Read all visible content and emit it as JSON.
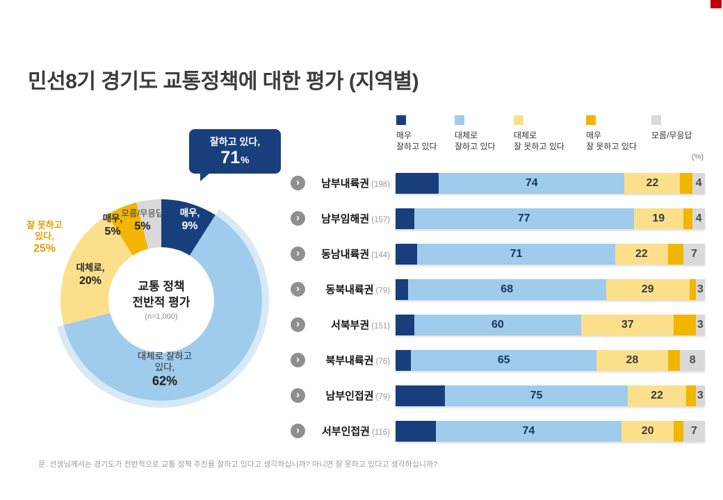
{
  "page": {
    "title": "민선8기 경기도 교통정책에 대한 평가 (지역별)",
    "unit_label": "(%)",
    "footnote": "문. 선생님께서는 경기도가 전반적으로 교통 정책 추진을 잘하고 있다고 생각하십니까? 아니면 잘 못하고 있다고 생각하십니까?"
  },
  "colors": {
    "very_good": "#183f7c",
    "good": "#9fcbec",
    "good_halo": "#d7e9f6",
    "bad": "#fbdf8b",
    "very_bad": "#f2b500",
    "dk": "#d9d9d9",
    "accent_red": "#c00000",
    "negative_text": "#e39b00"
  },
  "legend": {
    "items": [
      {
        "key": "very_good",
        "lines": [
          "매우",
          "잘하고 있다"
        ]
      },
      {
        "key": "good",
        "lines": [
          "대체로",
          "잘하고 있다"
        ]
      },
      {
        "key": "bad",
        "lines": [
          "대체로",
          "잘 못하고 있다"
        ]
      },
      {
        "key": "very_bad",
        "lines": [
          "매우",
          "잘 못하고 있다"
        ]
      },
      {
        "key": "dk",
        "lines": [
          "모름/무응답"
        ]
      }
    ]
  },
  "donut": {
    "center": {
      "line1": "교통 정책",
      "line2": "전반적 평가",
      "sub": "(n=1,000)"
    },
    "callout": {
      "label": "잘하고 있다,",
      "value": "71",
      "unit": "%"
    },
    "negative_callout": {
      "line1": "잘 못하고",
      "line2": "있다,",
      "value": "25%"
    },
    "labels": {
      "very_good": {
        "line1": "매우,",
        "value": "9%"
      },
      "good": {
        "line1": "대체로 잘하고",
        "line2": "있다,",
        "value": "62%"
      },
      "bad": {
        "line1": "대체로,",
        "value": "20%"
      },
      "very_bad": {
        "line1": "매우,",
        "value": "5%"
      },
      "dk": {
        "line1": "모름/무응답",
        "value": "5%"
      }
    }
  },
  "chart_data": [
    {
      "type": "pie",
      "title": "교통 정책 전반적 평가",
      "subtitle": "(n=1,000)",
      "labels": [
        "매우 잘하고 있다",
        "대체로 잘하고 있다",
        "대체로 잘 못하고 있다",
        "매우 잘 못하고 있다",
        "모름/무응답"
      ],
      "values": [
        9,
        62,
        20,
        5,
        5
      ],
      "positive_total": 71,
      "negative_total": 25
    },
    {
      "type": "bar",
      "stacked": true,
      "orientation": "horizontal",
      "unit": "%",
      "xlim": [
        0,
        100
      ],
      "series_keys": [
        "very_good",
        "good",
        "bad",
        "very_bad",
        "dk"
      ],
      "series_names": [
        "매우 잘하고 있다",
        "대체로 잘하고 있다",
        "대체로 잘 못하고 있다",
        "매우 잘 못하고 있다",
        "모름/무응답"
      ],
      "rows": [
        {
          "name": "남부내륙권",
          "n": "(198)",
          "values": [
            14,
            60,
            18,
            4,
            4
          ],
          "labels": {
            "positive": "74",
            "negative": "22",
            "dk": "4"
          }
        },
        {
          "name": "남부임해권",
          "n": "(157)",
          "values": [
            6,
            71,
            16,
            3,
            4
          ],
          "labels": {
            "positive": "77",
            "negative": "19",
            "dk": "4"
          }
        },
        {
          "name": "동남내륙권",
          "n": "(144)",
          "values": [
            7,
            64,
            17,
            5,
            7
          ],
          "labels": {
            "positive": "71",
            "negative": "22",
            "dk": "7"
          }
        },
        {
          "name": "동북내륙권",
          "n": "(79)",
          "values": [
            4,
            64,
            27,
            2,
            3
          ],
          "labels": {
            "positive": "68",
            "negative": "29",
            "dk": "3"
          }
        },
        {
          "name": "서북부권",
          "n": "(151)",
          "values": [
            6,
            54,
            30,
            7,
            3
          ],
          "labels": {
            "positive": "60",
            "negative": "37",
            "dk": "3"
          }
        },
        {
          "name": "북부내륙권",
          "n": "(76)",
          "values": [
            5,
            60,
            23,
            4,
            8
          ],
          "labels": {
            "positive": "65",
            "negative": "28",
            "dk": "8"
          }
        },
        {
          "name": "남부인접권",
          "n": "(79)",
          "values": [
            16,
            59,
            19,
            3,
            3
          ],
          "labels": {
            "positive": "75",
            "negative": "22",
            "dk": "3"
          }
        },
        {
          "name": "서부인접권",
          "n": "(116)",
          "values": [
            13,
            60,
            17,
            3,
            7
          ],
          "labels": {
            "positive": "74",
            "negative": "20",
            "dk": "7"
          }
        }
      ]
    }
  ]
}
